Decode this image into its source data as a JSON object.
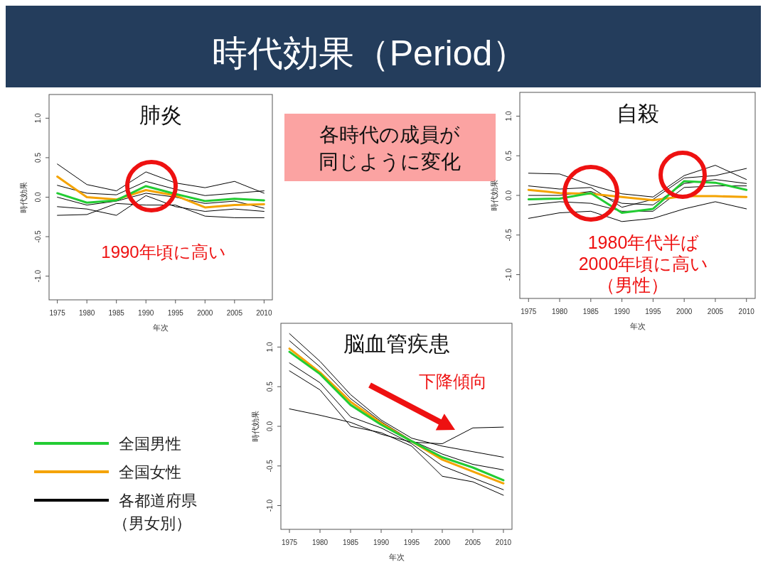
{
  "chart_data": [
    {
      "type": "other",
      "title": "時代効果（Period）",
      "annotations": [
        "各時代の成員が同じように変化"
      ]
    },
    {
      "type": "line",
      "title": "肺炎",
      "xlabel": "年次",
      "ylabel": "時代効果",
      "x": [
        1975,
        1980,
        1985,
        1990,
        1995,
        2000,
        2005,
        2010
      ],
      "xlim": [
        1973.6,
        2011.4
      ],
      "ylim": [
        -1.3,
        1.3
      ],
      "xticks": [
        1975,
        1980,
        1985,
        1990,
        1995,
        2000,
        2005,
        2010
      ],
      "yticks": [
        {
          "value": -1,
          "label": "-1.0"
        },
        {
          "value": -0.5,
          "label": "-0.5"
        },
        {
          "value": 0,
          "label": "0.0"
        },
        {
          "value": 0.5,
          "label": "0.5"
        },
        {
          "value": 1,
          "label": "1.0"
        }
      ],
      "grid": false,
      "annotations": [
        "1990年頃に高い"
      ],
      "series": [
        {
          "color": "#22cc33",
          "values": [
            0.05,
            -0.07,
            -0.04,
            0.14,
            0.04,
            -0.05,
            -0.02,
            -0.04
          ]
        },
        {
          "color": "#f4a300",
          "values": [
            0.26,
            0.0,
            -0.03,
            0.09,
            0.02,
            -0.13,
            -0.1,
            -0.09
          ]
        },
        {
          "color": "#000000",
          "values": [
            0.42,
            0.16,
            0.08,
            0.32,
            0.18,
            0.12,
            0.2,
            0.05
          ]
        },
        {
          "color": "#000000",
          "values": [
            -0.23,
            -0.22,
            -0.08,
            -0.1,
            -0.1,
            -0.24,
            -0.26,
            -0.26
          ]
        },
        {
          "color": "#000000",
          "values": [
            0.15,
            0.05,
            0.03,
            0.2,
            0.1,
            0.02,
            0.05,
            0.08
          ]
        },
        {
          "color": "#000000",
          "values": [
            -0.12,
            -0.15,
            -0.23,
            0.02,
            -0.12,
            -0.18,
            -0.15,
            -0.18
          ]
        },
        {
          "color": "#000000",
          "values": [
            0.0,
            -0.1,
            -0.05,
            0.05,
            0.0,
            -0.08,
            -0.05,
            -0.14
          ]
        }
      ]
    },
    {
      "type": "line",
      "title": "自殺",
      "xlabel": "年次",
      "ylabel": "時代効果",
      "x": [
        1975,
        1980,
        1985,
        1990,
        1995,
        2000,
        2005,
        2010
      ],
      "xlim": [
        1973.6,
        2011.4
      ],
      "ylim": [
        -1.3,
        1.3
      ],
      "xticks": [
        1975,
        1980,
        1985,
        1990,
        1995,
        2000,
        2005,
        2010
      ],
      "yticks": [
        {
          "value": -1,
          "label": "-1.0"
        },
        {
          "value": -0.5,
          "label": "-0.5"
        },
        {
          "value": 0,
          "label": "0.0"
        },
        {
          "value": 0.5,
          "label": "0.5"
        },
        {
          "value": 1,
          "label": "1.0"
        }
      ],
      "grid": false,
      "annotations": [
        "1980年代半ば",
        "2000年頃に高い",
        "（男性）"
      ],
      "series": [
        {
          "color": "#22cc33",
          "values": [
            -0.05,
            -0.04,
            0.03,
            -0.22,
            -0.17,
            0.18,
            0.16,
            0.07
          ]
        },
        {
          "color": "#f4a300",
          "values": [
            0.07,
            0.03,
            0.02,
            -0.02,
            -0.06,
            -0.01,
            -0.01,
            -0.02
          ]
        },
        {
          "color": "#000000",
          "values": [
            0.28,
            0.27,
            0.13,
            0.02,
            -0.02,
            0.25,
            0.38,
            0.2
          ]
        },
        {
          "color": "#000000",
          "values": [
            -0.29,
            -0.22,
            -0.2,
            -0.33,
            -0.29,
            -0.17,
            -0.08,
            -0.17
          ]
        },
        {
          "color": "#000000",
          "values": [
            0.12,
            0.08,
            0.1,
            -0.15,
            -0.05,
            0.22,
            0.25,
            0.34
          ]
        },
        {
          "color": "#000000",
          "values": [
            -0.12,
            -0.08,
            -0.1,
            -0.2,
            -0.2,
            0.1,
            0.12,
            0.12
          ]
        },
        {
          "color": "#000000",
          "values": [
            0.0,
            0.0,
            0.05,
            -0.1,
            -0.12,
            0.15,
            0.2,
            0.15
          ]
        }
      ]
    },
    {
      "type": "line",
      "title": "脳血管疾患",
      "xlabel": "年次",
      "ylabel": "時代効果",
      "x": [
        1975,
        1980,
        1985,
        1990,
        1995,
        2000,
        2005,
        2010
      ],
      "xlim": [
        1973.6,
        2011.4
      ],
      "ylim": [
        -1.3,
        1.3
      ],
      "xticks": [
        1975,
        1980,
        1985,
        1990,
        1995,
        2000,
        2005,
        2010
      ],
      "yticks": [
        {
          "value": -1,
          "label": "-1.0"
        },
        {
          "value": -0.5,
          "label": "-0.5"
        },
        {
          "value": 0,
          "label": "0.0"
        },
        {
          "value": 0.5,
          "label": "0.5"
        },
        {
          "value": 1,
          "label": "1.0"
        }
      ],
      "grid": false,
      "legend": "left",
      "annotations": [
        "下降傾向"
      ],
      "series": [
        {
          "name": "全国男性",
          "color": "#22cc33",
          "values": [
            0.94,
            0.66,
            0.27,
            0.02,
            -0.19,
            -0.39,
            -0.52,
            -0.68
          ]
        },
        {
          "name": "全国女性",
          "color": "#f4a300",
          "values": [
            0.98,
            0.68,
            0.31,
            0.04,
            -0.19,
            -0.42,
            -0.57,
            -0.72
          ]
        },
        {
          "name": "各都道府県（男女別）",
          "color": "#000000",
          "values": [
            0.22,
            0.14,
            0.05,
            -0.1,
            -0.2,
            -0.22,
            -0.02,
            -0.01
          ]
        },
        {
          "color": "#000000",
          "values": [
            1.17,
            0.82,
            0.4,
            0.08,
            -0.15,
            -0.25,
            -0.32,
            -0.39
          ]
        },
        {
          "color": "#000000",
          "values": [
            0.7,
            0.46,
            0.0,
            -0.08,
            -0.25,
            -0.63,
            -0.7,
            -0.87
          ]
        },
        {
          "color": "#000000",
          "values": [
            1.08,
            0.75,
            0.35,
            0.06,
            -0.18,
            -0.35,
            -0.48,
            -0.55
          ]
        },
        {
          "color": "#000000",
          "values": [
            0.8,
            0.55,
            0.12,
            -0.02,
            -0.22,
            -0.5,
            -0.65,
            -0.8
          ]
        }
      ]
    }
  ]
}
